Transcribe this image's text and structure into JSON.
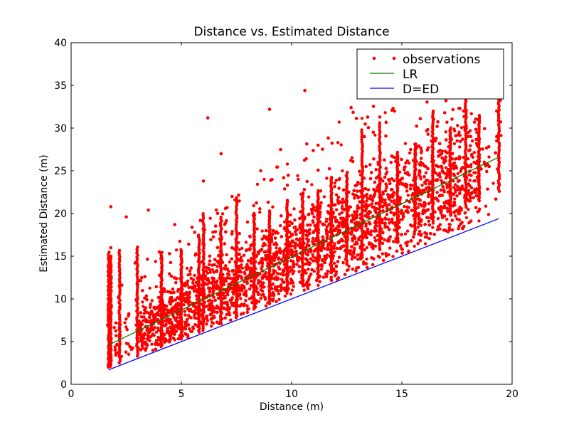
{
  "chart_data": {
    "type": "scatter",
    "title": "Distance vs. Estimated Distance",
    "xlabel": "Distance (m)",
    "ylabel": "Estimated Distance (m)",
    "xlim": [
      0,
      20
    ],
    "ylim": [
      0,
      40
    ],
    "xticks": [
      0,
      5,
      10,
      15,
      20
    ],
    "yticks": [
      0,
      5,
      10,
      15,
      20,
      25,
      30,
      35,
      40
    ],
    "grid": false,
    "legend_position": "top-right",
    "series": [
      {
        "name": "observations",
        "kind": "scatter",
        "color": "#ff0000",
        "x_range": [
          1.6,
          19.5
        ],
        "points": [
          [
            1.7,
            3.6
          ],
          [
            1.7,
            2.3
          ],
          [
            1.8,
            20.8
          ],
          [
            1.8,
            16.0
          ],
          [
            2.0,
            4.0
          ],
          [
            2.2,
            6.5
          ],
          [
            2.3,
            11.6
          ],
          [
            2.5,
            19.6
          ],
          [
            2.6,
            8.0
          ],
          [
            2.9,
            14.2
          ],
          [
            3.0,
            6.2
          ],
          [
            3.2,
            12.5
          ],
          [
            3.5,
            20.4
          ],
          [
            3.8,
            9.0
          ],
          [
            4.0,
            15.5
          ],
          [
            4.2,
            11.2
          ],
          [
            4.5,
            7.3
          ],
          [
            4.7,
            18.7
          ],
          [
            5.0,
            12.0
          ],
          [
            5.3,
            5.5
          ],
          [
            5.6,
            17.8
          ],
          [
            5.9,
            10.5
          ],
          [
            6.0,
            23.8
          ],
          [
            6.2,
            31.2
          ],
          [
            6.5,
            14.0
          ],
          [
            6.8,
            27.0
          ],
          [
            7.0,
            9.5
          ],
          [
            7.3,
            22.0
          ],
          [
            7.6,
            15.2
          ],
          [
            8.0,
            19.0
          ],
          [
            8.3,
            11.3
          ],
          [
            8.6,
            25.0
          ],
          [
            9.0,
            32.2
          ],
          [
            9.2,
            14.0
          ],
          [
            9.5,
            27.5
          ],
          [
            9.8,
            18.0
          ],
          [
            10.0,
            12.0
          ],
          [
            10.3,
            24.0
          ],
          [
            10.6,
            34.4
          ],
          [
            10.9,
            20.5
          ],
          [
            11.2,
            28.0
          ],
          [
            11.5,
            15.0
          ],
          [
            11.8,
            24.0
          ],
          [
            12.1,
            28.3
          ],
          [
            12.4,
            18.5
          ],
          [
            12.7,
            32.4
          ],
          [
            13.0,
            22.0
          ],
          [
            13.3,
            29.0
          ],
          [
            13.6,
            17.5
          ],
          [
            14.0,
            31.3
          ],
          [
            14.3,
            23.0
          ],
          [
            14.6,
            32.3
          ],
          [
            15.0,
            20.0
          ],
          [
            15.4,
            27.5
          ],
          [
            15.8,
            33.8
          ],
          [
            16.2,
            22.0
          ],
          [
            16.6,
            30.2
          ],
          [
            17.0,
            33.2
          ],
          [
            17.4,
            21.0
          ],
          [
            17.8,
            32.0
          ],
          [
            18.2,
            28.5
          ],
          [
            18.5,
            24.5
          ],
          [
            19.3,
            32.0
          ],
          [
            19.4,
            33.5
          ],
          [
            19.4,
            23.5
          ],
          [
            19.3,
            28.5
          ]
        ]
      },
      {
        "name": "LR",
        "kind": "line",
        "color": "#008000",
        "x": [
          1.7,
          19.4
        ],
        "y": [
          4.6,
          26.6
        ]
      },
      {
        "name": "D=ED",
        "kind": "line",
        "color": "#0000ff",
        "x": [
          1.7,
          19.4
        ],
        "y": [
          1.7,
          19.4
        ]
      }
    ]
  }
}
